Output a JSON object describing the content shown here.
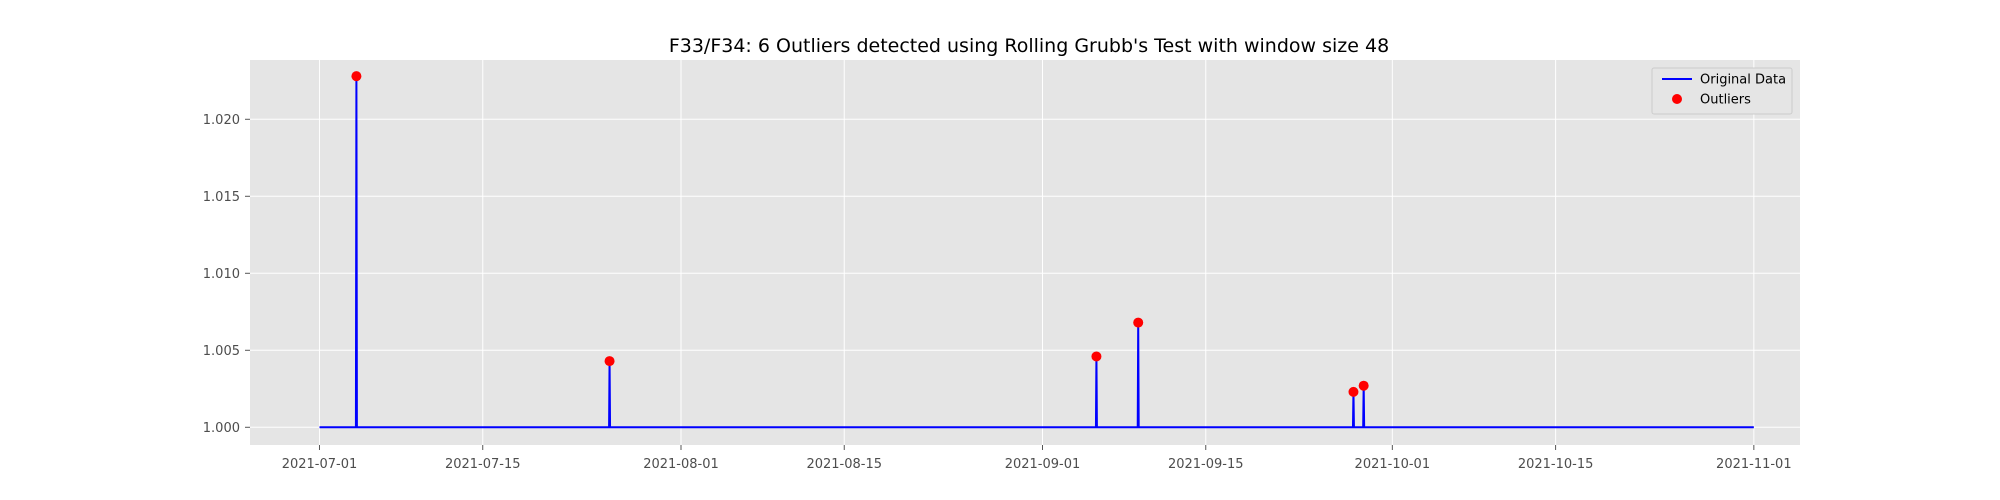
{
  "chart_data": {
    "type": "line",
    "title": "F33/F34: 6 Outliers detected using Rolling Grubb's Test with window size 48",
    "xlabel": "",
    "ylabel": "",
    "x_type": "date",
    "xlim": [
      "2021-06-25T01:00",
      "2021-11-04T23:00"
    ],
    "ylim": [
      0.99885,
      1.02385
    ],
    "x_ticks": [
      "2021-07-01",
      "2021-07-15",
      "2021-08-01",
      "2021-08-15",
      "2021-09-01",
      "2021-09-15",
      "2021-10-01",
      "2021-10-15",
      "2021-11-01"
    ],
    "y_ticks": [
      1.0,
      1.005,
      1.01,
      1.015,
      1.02
    ],
    "y_tick_labels": [
      "1.000",
      "1.005",
      "1.010",
      "1.015",
      "1.020"
    ],
    "grid": true,
    "legend_position": "upper right",
    "series": [
      {
        "name": "Original Data",
        "kind": "line",
        "color": "#0000ff",
        "baseline": 1.0,
        "points": [
          {
            "x": "2021-07-01T00:00",
            "y": 1.0
          },
          {
            "x": "2021-07-04T03:00",
            "y": 1.0
          },
          {
            "x": "2021-07-04T04:00",
            "y": 1.0228
          },
          {
            "x": "2021-07-04T05:00",
            "y": 1.0
          },
          {
            "x": "2021-07-25T20:00",
            "y": 1.0
          },
          {
            "x": "2021-07-25T21:00",
            "y": 1.0043
          },
          {
            "x": "2021-07-25T22:00",
            "y": 1.0
          },
          {
            "x": "2021-09-05T14:00",
            "y": 1.0
          },
          {
            "x": "2021-09-05T15:00",
            "y": 1.0046
          },
          {
            "x": "2021-09-05T16:00",
            "y": 1.0
          },
          {
            "x": "2021-09-09T04:00",
            "y": 1.0
          },
          {
            "x": "2021-09-09T05:00",
            "y": 1.0068
          },
          {
            "x": "2021-09-09T06:00",
            "y": 1.0
          },
          {
            "x": "2021-09-27T15:00",
            "y": 1.0
          },
          {
            "x": "2021-09-27T16:00",
            "y": 1.0023
          },
          {
            "x": "2021-09-27T17:00",
            "y": 1.0
          },
          {
            "x": "2021-09-28T12:00",
            "y": 1.0
          },
          {
            "x": "2021-09-28T13:00",
            "y": 1.0027
          },
          {
            "x": "2021-09-28T14:00",
            "y": 1.0
          },
          {
            "x": "2021-11-01T00:00",
            "y": 1.0
          }
        ]
      },
      {
        "name": "Outliers",
        "kind": "scatter",
        "color": "#ff0000",
        "points": [
          {
            "x": "2021-07-04T04:00",
            "y": 1.0228
          },
          {
            "x": "2021-07-25T21:00",
            "y": 1.0043
          },
          {
            "x": "2021-09-05T15:00",
            "y": 1.0046
          },
          {
            "x": "2021-09-09T05:00",
            "y": 1.0068
          },
          {
            "x": "2021-09-27T16:00",
            "y": 1.0023
          },
          {
            "x": "2021-09-28T13:00",
            "y": 1.0027
          }
        ]
      }
    ]
  }
}
